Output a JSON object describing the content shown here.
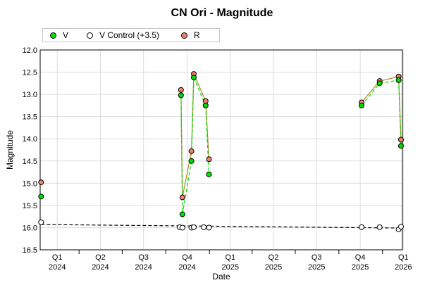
{
  "chart_data": {
    "type": "scatter",
    "title": "CN Ori - Magnitude",
    "xlabel": "Date",
    "ylabel": "Magnitude",
    "ylim": [
      16.5,
      12.0
    ],
    "y_inverted": true,
    "y_ticks": [
      "12.0",
      "12.5",
      "13.0",
      "13.5",
      "14.0",
      "14.5",
      "15.0",
      "15.5",
      "16.0",
      "16.5"
    ],
    "x_range": [
      "2024-01-10",
      "2026-02-12"
    ],
    "x_ticks": [
      {
        "quarter": "Q1",
        "year": "2024",
        "date": "2024-02-15"
      },
      {
        "quarter": "Q2",
        "year": "2024",
        "date": "2024-05-16"
      },
      {
        "quarter": "Q3",
        "year": "2024",
        "date": "2024-08-15"
      },
      {
        "quarter": "Q4",
        "year": "2024",
        "date": "2024-11-15"
      },
      {
        "quarter": "Q1",
        "year": "2025",
        "date": "2025-02-14"
      },
      {
        "quarter": "Q2",
        "year": "2025",
        "date": "2025-05-16"
      },
      {
        "quarter": "Q3",
        "year": "2025",
        "date": "2025-08-15"
      },
      {
        "quarter": "Q4",
        "year": "2025",
        "date": "2025-11-15"
      },
      {
        "quarter": "Q1",
        "year": "2026",
        "date": "2026-02-14"
      }
    ],
    "x_separators": [
      "2024-04-01",
      "2024-07-01",
      "2024-10-01",
      "2025-01-01",
      "2025-04-01",
      "2025-07-01",
      "2025-10-01",
      "2026-01-01"
    ],
    "grid": true,
    "legend_position": "top-left",
    "series": [
      {
        "name": "V",
        "color": "#00dd00",
        "connector_color": "#00dd00",
        "connector_style": "dashed",
        "points": [
          {
            "x": "2024-01-12",
            "y": 15.3
          },
          {
            "x": "2024-11-02",
            "y": 13.02
          },
          {
            "x": "2024-11-05",
            "y": 15.7
          },
          {
            "x": "2024-11-24",
            "y": 14.5
          },
          {
            "x": "2024-11-29",
            "y": 12.62
          },
          {
            "x": "2024-12-24",
            "y": 13.25
          },
          {
            "x": "2024-12-31",
            "y": 14.8
          },
          {
            "x": "2025-11-18",
            "y": 13.25
          },
          {
            "x": "2025-12-26",
            "y": 12.75
          },
          {
            "x": "2026-02-04",
            "y": 12.68
          },
          {
            "x": "2026-02-09",
            "y": 14.16
          }
        ]
      },
      {
        "name": "V Control (+3.5)",
        "color": "#ffffff",
        "connector_color": "#000000",
        "connector_style": "dashed",
        "trend": [
          [
            "2024-01-12",
            15.93
          ],
          [
            "2026-02-09",
            16.01
          ]
        ],
        "points": [
          {
            "x": "2024-01-12",
            "y": 15.88
          },
          {
            "x": "2024-10-30",
            "y": 15.99
          },
          {
            "x": "2024-11-05",
            "y": 16.0
          },
          {
            "x": "2024-11-24",
            "y": 16.0
          },
          {
            "x": "2024-11-29",
            "y": 15.99
          },
          {
            "x": "2024-12-20",
            "y": 15.99
          },
          {
            "x": "2024-12-31",
            "y": 16.0
          },
          {
            "x": "2025-11-18",
            "y": 15.99
          },
          {
            "x": "2025-12-26",
            "y": 15.99
          },
          {
            "x": "2026-02-04",
            "y": 16.04
          },
          {
            "x": "2026-02-09",
            "y": 15.98
          }
        ]
      },
      {
        "name": "R",
        "color": "#f08070",
        "connector_color": "#b08a30",
        "connector_style": "solid",
        "points": [
          {
            "x": "2024-01-12",
            "y": 14.98
          },
          {
            "x": "2024-11-02",
            "y": 12.9
          },
          {
            "x": "2024-11-05",
            "y": 15.32
          },
          {
            "x": "2024-11-24",
            "y": 14.28
          },
          {
            "x": "2024-11-29",
            "y": 12.54
          },
          {
            "x": "2024-12-24",
            "y": 13.15
          },
          {
            "x": "2024-12-31",
            "y": 14.46
          },
          {
            "x": "2025-11-18",
            "y": 13.18
          },
          {
            "x": "2025-12-26",
            "y": 12.7
          },
          {
            "x": "2026-02-04",
            "y": 12.6
          },
          {
            "x": "2026-02-09",
            "y": 14.02
          }
        ]
      }
    ]
  }
}
